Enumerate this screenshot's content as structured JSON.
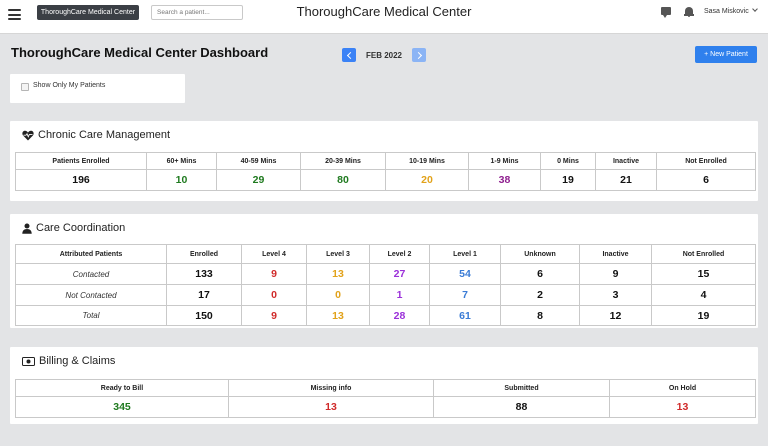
{
  "topbar": {
    "org_button": "ThoroughCare Medical Center",
    "search_placeholder": "Search a patient...",
    "app_title": "ThoroughCare Medical Center",
    "user_name": "Sasa Miskovic"
  },
  "dashboard": {
    "title": "ThoroughCare Medical Center Dashboard",
    "month": "FEB 2022",
    "new_patient_button": "+ New Patient",
    "filter_label": "Show Only My Patients"
  },
  "ccm": {
    "title": "Chronic Care Management",
    "headers": [
      "Patients Enrolled",
      "60+ Mins",
      "40-59 Mins",
      "20-39 Mins",
      "10-19 Mins",
      "1-9 Mins",
      "0 Mins",
      "Inactive",
      "Not Enrolled"
    ],
    "values": [
      "196",
      "10",
      "29",
      "80",
      "20",
      "38",
      "19",
      "21",
      "6"
    ]
  },
  "care_coordination": {
    "title": "Care Coordination",
    "headers": [
      "Attributed Patients",
      "Enrolled",
      "Level 4",
      "Level 3",
      "Level 2",
      "Level 1",
      "Unknown",
      "Inactive",
      "Not Enrolled"
    ],
    "rows": [
      {
        "label": "Contacted",
        "values": [
          "133",
          "9",
          "13",
          "27",
          "54",
          "6",
          "9",
          "15"
        ]
      },
      {
        "label": "Not Contacted",
        "values": [
          "17",
          "0",
          "0",
          "1",
          "7",
          "2",
          "3",
          "4"
        ]
      },
      {
        "label": "Total",
        "values": [
          "150",
          "9",
          "13",
          "28",
          "61",
          "8",
          "12",
          "19"
        ]
      }
    ]
  },
  "billing": {
    "title": "Billing & Claims",
    "headers": [
      "Ready to Bill",
      "Missing info",
      "Submitted",
      "On Hold"
    ],
    "values": [
      "345",
      "13",
      "88",
      "13"
    ]
  },
  "colors": {
    "primary_button": "#2f80ed",
    "green": "#1f7a1f",
    "orange": "#e2a21a",
    "purple": "#8e1e8e",
    "red": "#d02a2a",
    "blue": "#3a7bd5",
    "violet": "#9b30d9"
  },
  "icons": [
    "hamburger-icon",
    "chat-icon",
    "bell-icon",
    "chevron-down-icon",
    "chevron-left-icon",
    "chevron-right-icon",
    "heartbeat-icon",
    "user-icon",
    "money-icon"
  ]
}
